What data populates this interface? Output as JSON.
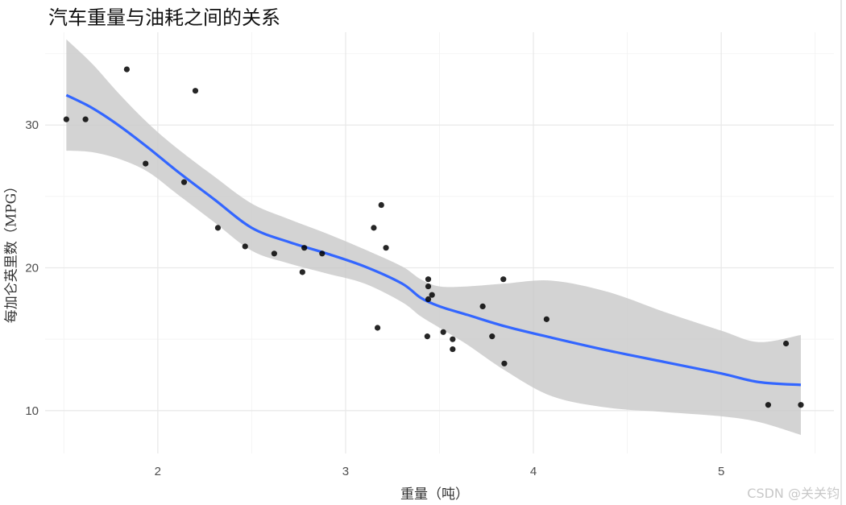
{
  "chart_data": {
    "type": "scatter",
    "title": "汽车重量与油耗之间的关系",
    "xlabel": "重量（吨）",
    "ylabel": "每加仑英里数（MPG）",
    "xlim": [
      1.4,
      5.6
    ],
    "ylim": [
      7.0,
      36.5
    ],
    "x_ticks": [
      2,
      3,
      4,
      5
    ],
    "y_ticks": [
      10,
      20,
      30
    ],
    "x_tick_labels": [
      "2",
      "3",
      "4",
      "5"
    ],
    "y_tick_labels": [
      "10",
      "20",
      "30"
    ],
    "grid": true,
    "legend": "none",
    "points": [
      [
        1.513,
        30.4
      ],
      [
        1.615,
        30.4
      ],
      [
        1.835,
        33.9
      ],
      [
        1.935,
        27.3
      ],
      [
        2.14,
        26.0
      ],
      [
        2.2,
        32.4
      ],
      [
        2.32,
        22.8
      ],
      [
        2.465,
        21.5
      ],
      [
        2.62,
        21.0
      ],
      [
        2.77,
        19.7
      ],
      [
        2.78,
        21.4
      ],
      [
        2.875,
        21.0
      ],
      [
        3.15,
        22.8
      ],
      [
        3.17,
        15.8
      ],
      [
        3.19,
        24.4
      ],
      [
        3.215,
        21.4
      ],
      [
        3.435,
        15.2
      ],
      [
        3.44,
        18.7
      ],
      [
        3.44,
        19.2
      ],
      [
        3.44,
        17.8
      ],
      [
        3.46,
        18.1
      ],
      [
        3.52,
        15.5
      ],
      [
        3.57,
        15.0
      ],
      [
        3.57,
        14.3
      ],
      [
        3.73,
        17.3
      ],
      [
        3.78,
        15.2
      ],
      [
        3.84,
        19.2
      ],
      [
        3.845,
        13.3
      ],
      [
        4.07,
        16.4
      ],
      [
        5.25,
        10.4
      ],
      [
        5.345,
        14.7
      ],
      [
        5.424,
        10.4
      ]
    ],
    "smooth": {
      "x": [
        1.513,
        1.65,
        1.8,
        1.95,
        2.1,
        2.3,
        2.5,
        2.7,
        2.9,
        3.1,
        3.3,
        3.4,
        3.5,
        3.65,
        3.85,
        4.1,
        4.4,
        4.7,
        5.0,
        5.2,
        5.424
      ],
      "y": [
        32.1,
        31.2,
        29.9,
        28.4,
        26.8,
        24.8,
        22.8,
        21.8,
        21.0,
        20.1,
        18.9,
        17.9,
        17.3,
        16.7,
        15.9,
        15.1,
        14.2,
        13.4,
        12.6,
        12.0,
        11.8
      ],
      "lo": [
        28.2,
        28.1,
        27.6,
        26.7,
        25.2,
        23.2,
        21.2,
        20.3,
        19.6,
        18.9,
        17.6,
        16.6,
        15.8,
        14.6,
        12.8,
        11.0,
        10.2,
        9.9,
        9.6,
        9.2,
        8.3
      ],
      "hi": [
        36.0,
        34.3,
        32.1,
        30.1,
        28.4,
        26.4,
        24.5,
        23.4,
        22.4,
        21.3,
        20.1,
        19.2,
        18.7,
        18.7,
        18.9,
        19.1,
        18.3,
        16.9,
        15.6,
        14.8,
        15.3
      ]
    },
    "colors": {
      "point": "#000000",
      "line": "#3366ff",
      "ribbon": "#c8c8c8",
      "grid_major": "#e9e9e9",
      "grid_minor": "#f4f4f4"
    }
  },
  "watermark": "CSDN @关关钧"
}
